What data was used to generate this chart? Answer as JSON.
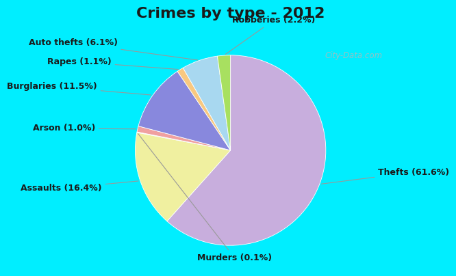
{
  "title": "Crimes by type - 2012",
  "slices": [
    {
      "label": "Thefts",
      "value": 61.6,
      "color": "#c8aedd"
    },
    {
      "label": "Assaults",
      "value": 16.4,
      "color": "#f0f0a0"
    },
    {
      "label": "Murders",
      "value": 0.1,
      "color": "#d0ecc0"
    },
    {
      "label": "Arson",
      "value": 1.0,
      "color": "#f0a0a0"
    },
    {
      "label": "Burglaries",
      "value": 11.5,
      "color": "#8888dd"
    },
    {
      "label": "Rapes",
      "value": 1.1,
      "color": "#f8c880"
    },
    {
      "label": "Auto thefts",
      "value": 6.1,
      "color": "#a8d8f0"
    },
    {
      "label": "Robberies",
      "value": 2.2,
      "color": "#a8e060"
    }
  ],
  "bg_top": "#00eeff",
  "bg_main_color": "#c8e8cc",
  "title_color": "#1a1a1a",
  "title_fontsize": 16,
  "label_fontsize": 9,
  "watermark": "City-Data.com",
  "startangle": 90
}
